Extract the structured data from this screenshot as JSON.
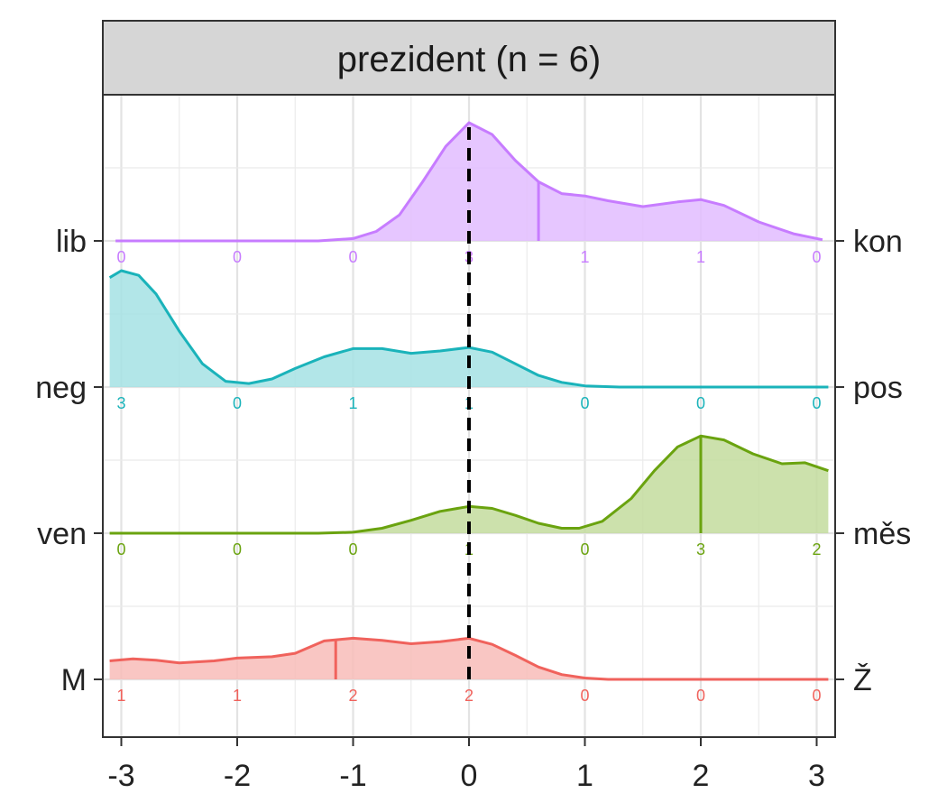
{
  "chart_data": {
    "type": "ridgeline-density",
    "panel_title": "prezident (n = 6)",
    "x_ticks": [
      -3,
      -2,
      -1,
      0,
      1,
      2,
      3
    ],
    "x_tick_labels": [
      "-3",
      "-2",
      "-1",
      "0",
      "1",
      "2",
      "3"
    ],
    "xlim": [
      -3.1,
      3.1
    ],
    "reference_line_x": 0,
    "grid": "on",
    "count_positions": [
      -3,
      -2,
      -1,
      0,
      1,
      2,
      3
    ],
    "series": [
      {
        "name": "lib-kon",
        "left_label": "lib",
        "right_label": "kon",
        "color": "#c77cff",
        "fill": "#e2bcff",
        "counts": [
          0,
          0,
          0,
          3,
          1,
          1,
          0
        ],
        "median": 0.6,
        "density": [
          [
            -3.05,
            0.0
          ],
          [
            -2.0,
            0.0
          ],
          [
            -1.3,
            0.0
          ],
          [
            -1.0,
            0.02
          ],
          [
            -0.8,
            0.08
          ],
          [
            -0.6,
            0.22
          ],
          [
            -0.4,
            0.5
          ],
          [
            -0.2,
            0.8
          ],
          [
            0.0,
            1.0
          ],
          [
            0.2,
            0.9
          ],
          [
            0.4,
            0.68
          ],
          [
            0.6,
            0.5
          ],
          [
            0.8,
            0.4
          ],
          [
            1.0,
            0.38
          ],
          [
            1.2,
            0.34
          ],
          [
            1.5,
            0.29
          ],
          [
            1.8,
            0.33
          ],
          [
            2.0,
            0.35
          ],
          [
            2.2,
            0.3
          ],
          [
            2.5,
            0.16
          ],
          [
            2.8,
            0.06
          ],
          [
            3.05,
            0.01
          ]
        ]
      },
      {
        "name": "neg-pos",
        "left_label": "neg",
        "right_label": "pos",
        "color": "#1ab3ba",
        "fill": "#a5e2e4",
        "counts": [
          3,
          0,
          1,
          1,
          0,
          0,
          0
        ],
        "median": null,
        "density": [
          [
            -3.1,
            0.94
          ],
          [
            -3.0,
            1.0
          ],
          [
            -2.85,
            0.96
          ],
          [
            -2.7,
            0.8
          ],
          [
            -2.5,
            0.48
          ],
          [
            -2.3,
            0.2
          ],
          [
            -2.1,
            0.05
          ],
          [
            -1.9,
            0.03
          ],
          [
            -1.7,
            0.07
          ],
          [
            -1.5,
            0.16
          ],
          [
            -1.25,
            0.26
          ],
          [
            -1.0,
            0.33
          ],
          [
            -0.75,
            0.33
          ],
          [
            -0.5,
            0.29
          ],
          [
            -0.25,
            0.31
          ],
          [
            0.0,
            0.34
          ],
          [
            0.2,
            0.3
          ],
          [
            0.4,
            0.2
          ],
          [
            0.6,
            0.1
          ],
          [
            0.8,
            0.04
          ],
          [
            1.0,
            0.01
          ],
          [
            1.3,
            0.0
          ],
          [
            3.1,
            0.0
          ]
        ]
      },
      {
        "name": "ven-mes",
        "left_label": "ven",
        "right_label": "měs",
        "color": "#6aa30f",
        "fill": "#c3dc9d",
        "counts": [
          0,
          0,
          0,
          1,
          0,
          3,
          2
        ],
        "median": 2.0,
        "density": [
          [
            -3.1,
            0.0
          ],
          [
            -1.3,
            0.0
          ],
          [
            -1.0,
            0.01
          ],
          [
            -0.75,
            0.05
          ],
          [
            -0.5,
            0.13
          ],
          [
            -0.25,
            0.22
          ],
          [
            0.0,
            0.27
          ],
          [
            0.2,
            0.25
          ],
          [
            0.4,
            0.18
          ],
          [
            0.6,
            0.1
          ],
          [
            0.8,
            0.05
          ],
          [
            0.95,
            0.05
          ],
          [
            1.15,
            0.12
          ],
          [
            1.4,
            0.35
          ],
          [
            1.6,
            0.63
          ],
          [
            1.8,
            0.87
          ],
          [
            2.0,
            0.98
          ],
          [
            2.2,
            0.94
          ],
          [
            2.45,
            0.8
          ],
          [
            2.7,
            0.7
          ],
          [
            2.9,
            0.71
          ],
          [
            3.1,
            0.63
          ]
        ]
      },
      {
        "name": "M-Z",
        "left_label": "M",
        "right_label": "Ž",
        "color": "#f0625c",
        "fill": "#f8bcb8",
        "counts": [
          1,
          1,
          2,
          2,
          0,
          0,
          0
        ],
        "median": -1.15,
        "density": [
          [
            -3.1,
            0.27
          ],
          [
            -2.9,
            0.3
          ],
          [
            -2.7,
            0.28
          ],
          [
            -2.5,
            0.24
          ],
          [
            -2.2,
            0.27
          ],
          [
            -2.0,
            0.31
          ],
          [
            -1.7,
            0.33
          ],
          [
            -1.5,
            0.38
          ],
          [
            -1.25,
            0.56
          ],
          [
            -1.0,
            0.6
          ],
          [
            -0.75,
            0.57
          ],
          [
            -0.5,
            0.52
          ],
          [
            -0.25,
            0.55
          ],
          [
            0.0,
            0.6
          ],
          [
            0.2,
            0.51
          ],
          [
            0.4,
            0.35
          ],
          [
            0.6,
            0.18
          ],
          [
            0.8,
            0.07
          ],
          [
            1.0,
            0.02
          ],
          [
            1.2,
            0.0
          ],
          [
            3.1,
            0.0
          ]
        ]
      }
    ]
  }
}
